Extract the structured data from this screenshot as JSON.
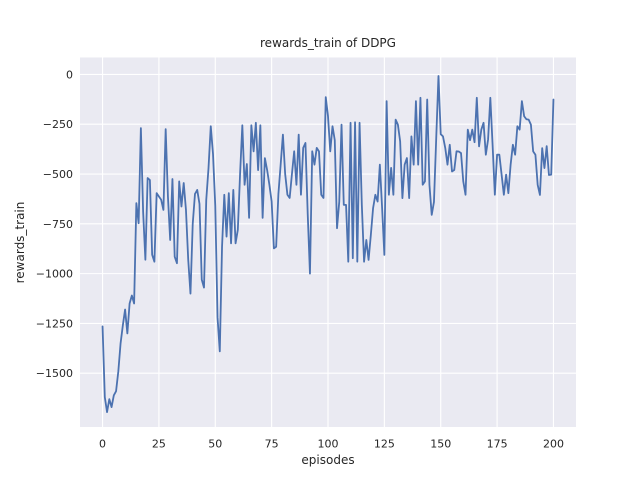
{
  "figure": {
    "background": "#ffffff",
    "plot_background": "#eaeaf2",
    "grid_color": "#ffffff",
    "text_color": "#262626"
  },
  "chart_data": {
    "type": "line",
    "title": "rewards_train of DDPG",
    "xlabel": "episodes",
    "ylabel": "rewards_train",
    "x_ticks": [
      0,
      25,
      50,
      75,
      100,
      125,
      150,
      175,
      200
    ],
    "y_ticks": [
      0,
      -250,
      -500,
      -750,
      -1000,
      -1250,
      -1500
    ],
    "xlim": [
      -10,
      210
    ],
    "ylim": [
      -1770,
      85
    ],
    "grid": true,
    "legend": "none",
    "style": "seaborn-darkgrid",
    "series": [
      {
        "name": "rewards_train",
        "color": "#4c72b0",
        "x_start": 0,
        "x_step": 1,
        "values": [
          -1265,
          -1620,
          -1695,
          -1630,
          -1670,
          -1611,
          -1590,
          -1490,
          -1350,
          -1260,
          -1180,
          -1300,
          -1150,
          -1110,
          -1150,
          -646,
          -747,
          -270,
          -690,
          -930,
          -520,
          -530,
          -905,
          -940,
          -596,
          -613,
          -629,
          -680,
          -275,
          -613,
          -831,
          -525,
          -915,
          -948,
          -537,
          -663,
          -545,
          -680,
          -930,
          -1100,
          -750,
          -600,
          -580,
          -650,
          -1030,
          -1070,
          -630,
          -470,
          -260,
          -400,
          -660,
          -1220,
          -1390,
          -865,
          -604,
          -814,
          -596,
          -848,
          -580,
          -848,
          -780,
          -500,
          -255,
          -554,
          -450,
          -720,
          -255,
          -386,
          -243,
          -480,
          -255,
          -720,
          -420,
          -480,
          -554,
          -638,
          -873,
          -865,
          -600,
          -453,
          -302,
          -500,
          -604,
          -620,
          -500,
          -386,
          -554,
          -302,
          -604,
          -369,
          -344,
          -700,
          -1000,
          -386,
          -453,
          -369,
          -386,
          -604,
          -620,
          -114,
          -210,
          -386,
          -260,
          -330,
          -772,
          -638,
          -252,
          -655,
          -655,
          -940,
          -243,
          -923,
          -240,
          -940,
          -243,
          -655,
          -940,
          -831,
          -931,
          -806,
          -671,
          -604,
          -638,
          -453,
          -671,
          -906,
          -134,
          -604,
          -469,
          -604,
          -227,
          -252,
          -336,
          -621,
          -453,
          -420,
          -621,
          -311,
          -453,
          -134,
          -453,
          -117,
          -554,
          -537,
          -126,
          -554,
          -705,
          -640,
          -320,
          -8,
          -300,
          -311,
          -369,
          -453,
          -353,
          -487,
          -480,
          -386,
          -387,
          -395,
          -537,
          -604,
          -277,
          -330,
          -277,
          -340,
          -117,
          -361,
          -277,
          -243,
          -403,
          -327,
          -117,
          -353,
          -604,
          -403,
          -403,
          -503,
          -604,
          -503,
          -596,
          -453,
          -353,
          -403,
          -260,
          -277,
          -134,
          -210,
          -225,
          -227,
          -252,
          -386,
          -403,
          -554,
          -605,
          -370,
          -470,
          -360,
          -505,
          -503,
          -126
        ]
      }
    ]
  }
}
